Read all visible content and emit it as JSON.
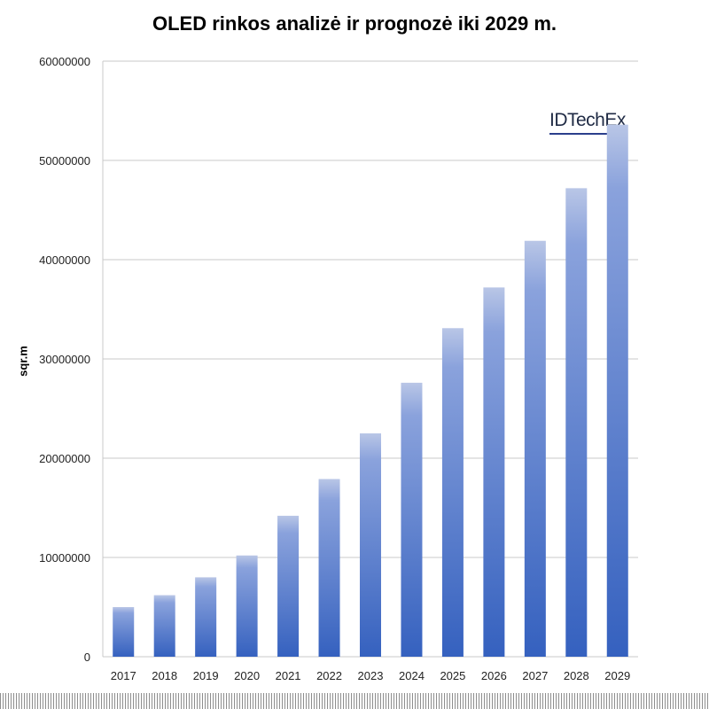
{
  "chart_data": {
    "type": "bar",
    "title": "OLED rinkos analizė ir prognozė iki 2029 m.",
    "xlabel": "",
    "ylabel": "sqr.m",
    "ylim": [
      0,
      60000000
    ],
    "yticks": [
      "0",
      "10000000",
      "20000000",
      "30000000",
      "40000000",
      "50000000",
      "60000000"
    ],
    "grid": true,
    "categories": [
      "2017",
      "2018",
      "2019",
      "2020",
      "2021",
      "2022",
      "2023",
      "2024",
      "2025",
      "2026",
      "2027",
      "2028",
      "2029"
    ],
    "values": [
      5000000,
      6200000,
      8000000,
      10200000,
      14200000,
      17900000,
      22500000,
      27600000,
      33100000,
      37200000,
      41900000,
      47200000,
      53600000
    ],
    "bar_color": "#3f6bc4",
    "watermark": "IDTechEx"
  }
}
